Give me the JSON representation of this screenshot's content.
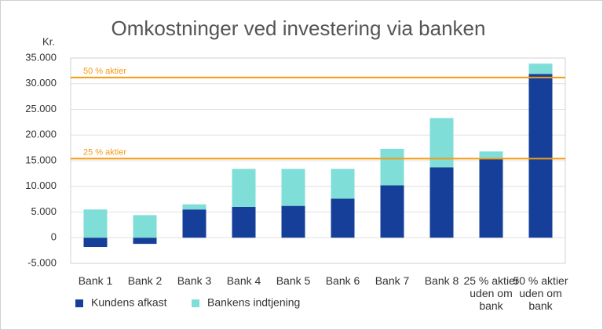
{
  "chart_data": {
    "type": "stacked_bar",
    "title": "Omkostninger ved investering via banken",
    "y_label": "Kr.",
    "categories": [
      "Bank 1",
      "Bank 2",
      "Bank 3",
      "Bank 4",
      "Bank 5",
      "Bank 6",
      "Bank 7",
      "Bank 8",
      "25 % aktier uden om bank",
      "50 % aktier uden om bank"
    ],
    "series": [
      {
        "name": "Kundens afkast",
        "color": "#163f99",
        "values": [
          -1800,
          -1200,
          5500,
          6000,
          6200,
          7600,
          10200,
          13700,
          15300,
          31900
        ]
      },
      {
        "name": "Bankens indtjening",
        "color": "#7fded8",
        "values": [
          5500,
          4400,
          1000,
          7400,
          7200,
          5800,
          7100,
          9600,
          1500,
          2000
        ]
      }
    ],
    "reference_lines": [
      {
        "label": "50 % aktier",
        "value": 31200,
        "color": "#f39c12"
      },
      {
        "label": "25 % aktier",
        "value": 15400,
        "color": "#f39c12"
      }
    ],
    "ylim": [
      -5000,
      35000
    ],
    "yticks": [
      {
        "value": -5000,
        "label": "-5.000"
      },
      0,
      {
        "value": 5000,
        "label": "5.000"
      },
      {
        "value": 10000,
        "label": "10.000"
      },
      {
        "value": 15000,
        "label": "15.000"
      },
      {
        "value": 20000,
        "label": "20.000"
      },
      {
        "value": 25000,
        "label": "25.000"
      },
      {
        "value": 30000,
        "label": "30.000"
      },
      {
        "value": 35000,
        "label": "35.000"
      }
    ],
    "grid": true
  }
}
